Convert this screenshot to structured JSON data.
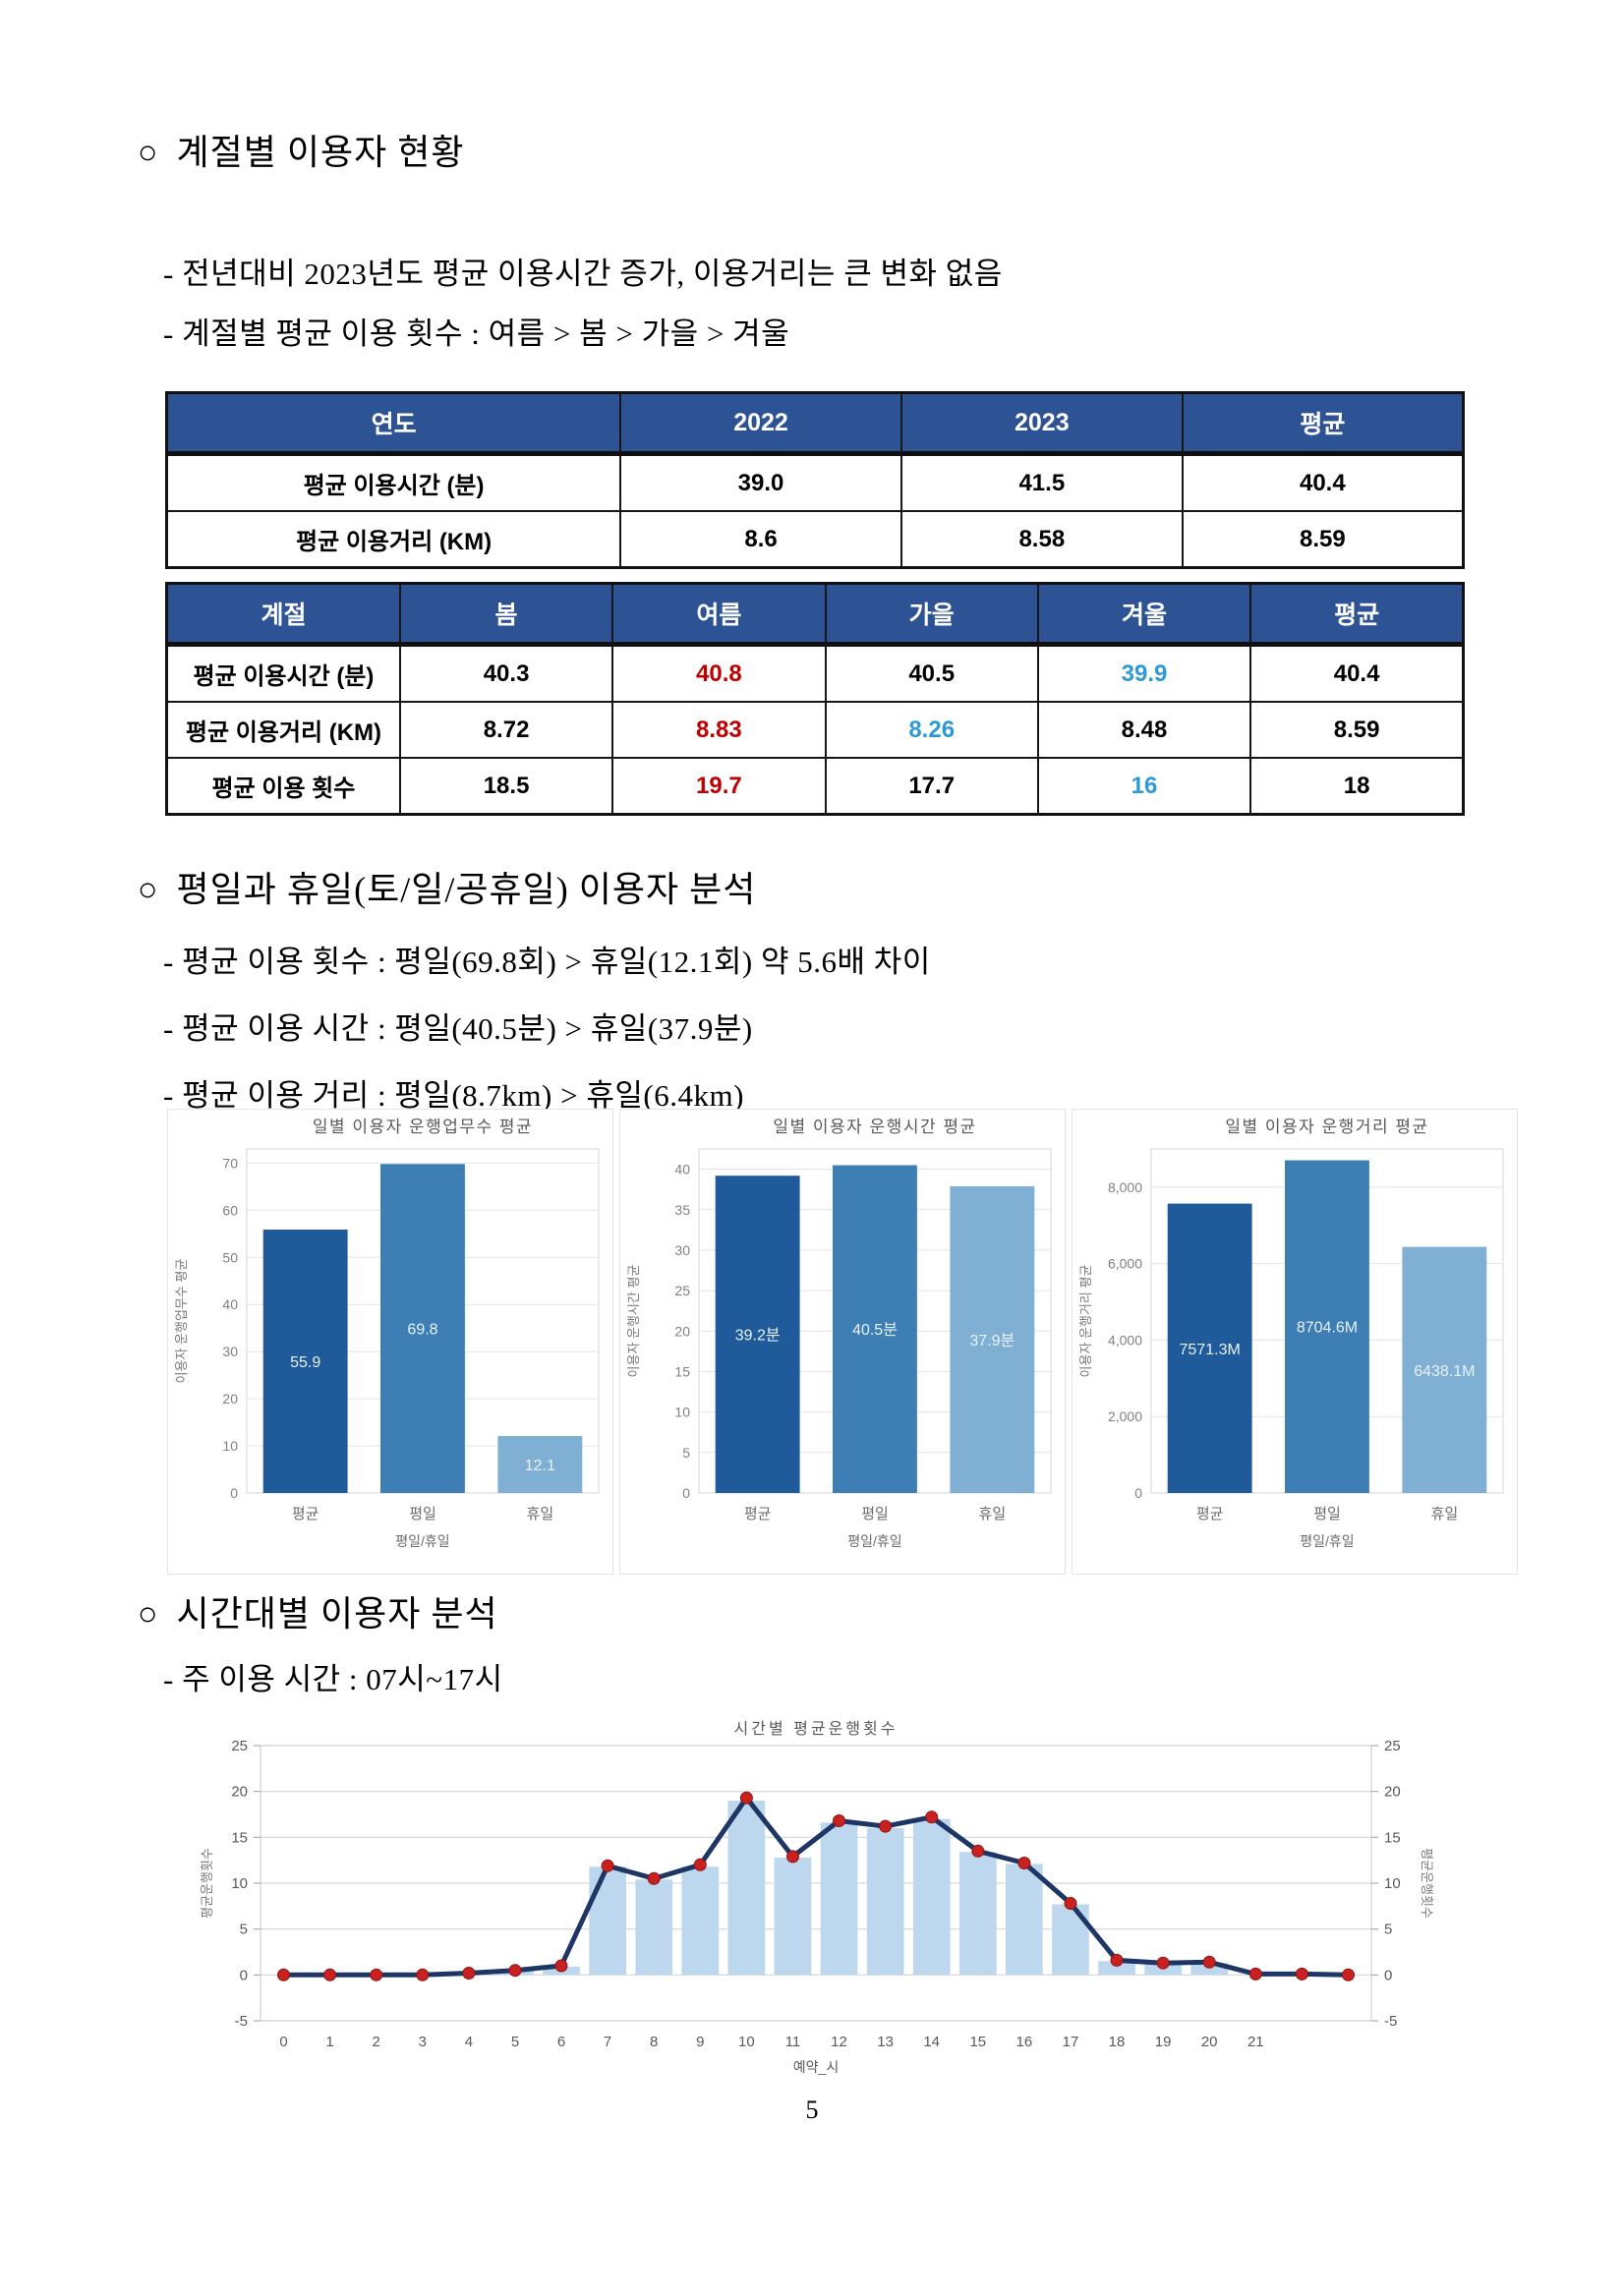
{
  "page_number": "5",
  "sections": {
    "s1": {
      "bullet": "○",
      "title": "계절별 이용자 현황",
      "items": [
        "- 전년대비 2023년도 평균 이용시간 증가, 이용거리는 큰 변화 없음",
        "- 계절별 평균 이용 횟수 : 여름 > 봄 > 가을 > 겨울"
      ]
    },
    "s2": {
      "bullet": "○",
      "title": "평일과 휴일(토/일/공휴일) 이용자 분석",
      "items": [
        "- 평균 이용 횟수 : 평일(69.8회) > 휴일(12.1회) 약 5.6배 차이",
        "- 평균 이용 시간 : 평일(40.5분) > 휴일(37.9분)",
        "- 평균 이용 거리 : 평일(8.7km) > 휴일(6.4km)"
      ]
    },
    "s3": {
      "bullet": "○",
      "title": "시간대별 이용자 분석",
      "items": [
        "- 주 이용 시간 : 07시~17시"
      ]
    }
  },
  "tables": {
    "year": {
      "headers": [
        "연도",
        "2022",
        "2023",
        "평균"
      ],
      "label_col_pct": 35,
      "rows": [
        {
          "label": "평균 이용시간 (분)",
          "values": [
            {
              "text": "39.0"
            },
            {
              "text": "41.5"
            },
            {
              "text": "40.4"
            }
          ]
        },
        {
          "label": "평균 이용거리 (KM)",
          "values": [
            {
              "text": "8.6"
            },
            {
              "text": "8.58"
            },
            {
              "text": "8.59"
            }
          ]
        }
      ]
    },
    "season": {
      "headers": [
        "계절",
        "봄",
        "여름",
        "가을",
        "겨울",
        "평균"
      ],
      "label_col_pct": 18,
      "rows": [
        {
          "label": "평균 이용시간 (분)",
          "values": [
            {
              "text": "40.3"
            },
            {
              "text": "40.8",
              "color": "red"
            },
            {
              "text": "40.5"
            },
            {
              "text": "39.9",
              "color": "blue"
            },
            {
              "text": "40.4"
            }
          ]
        },
        {
          "label": "평균 이용거리 (KM)",
          "values": [
            {
              "text": "8.72"
            },
            {
              "text": "8.83",
              "color": "red"
            },
            {
              "text": "8.26",
              "color": "blue"
            },
            {
              "text": "8.48"
            },
            {
              "text": "8.59"
            }
          ]
        },
        {
          "label": "평균 이용 횟수",
          "values": [
            {
              "text": "18.5"
            },
            {
              "text": "19.7",
              "color": "red"
            },
            {
              "text": "17.7"
            },
            {
              "text": "16",
              "color": "blue"
            },
            {
              "text": "18"
            }
          ]
        }
      ]
    }
  },
  "colors": {
    "table_header_bg": "#2e5395",
    "highlight_red": "#c00000",
    "highlight_blue": "#2e9ad4",
    "bar_dark": "#1f5a9b",
    "bar_mid": "#3d7fb5",
    "bar_light": "#7fb0d4",
    "combo_bar": "#bdd7ee",
    "combo_line": "#1e3666",
    "combo_marker": "#c92020"
  },
  "chart_data": [
    {
      "type": "bar",
      "title": "일별 이용자 운행업무수 평균",
      "ylabel": "이용자 운행업무수 평균",
      "xlabel": "평일/휴일",
      "categories": [
        "평균",
        "평일",
        "휴일"
      ],
      "values": [
        55.9,
        69.8,
        12.1
      ],
      "bar_labels": [
        "55.9",
        "69.8",
        "12.1"
      ],
      "yticks": [
        0,
        10,
        20,
        30,
        40,
        50,
        60,
        70
      ],
      "ylim": [
        0,
        73
      ],
      "bar_colors": [
        "#1f5a9b",
        "#3d7fb5",
        "#7fb0d4"
      ],
      "legend": "none",
      "grid": true
    },
    {
      "type": "bar",
      "title": "일별 이용자 운행시간 평균",
      "ylabel": "이용자 운행시간 평균",
      "xlabel": "평일/휴일",
      "categories": [
        "평균",
        "평일",
        "휴일"
      ],
      "values": [
        39.2,
        40.5,
        37.9
      ],
      "bar_labels": [
        "39.2분",
        "40.5분",
        "37.9분"
      ],
      "yticks": [
        0,
        5,
        10,
        15,
        20,
        25,
        30,
        35,
        40
      ],
      "ylim": [
        0,
        42.5
      ],
      "bar_colors": [
        "#1f5a9b",
        "#3d7fb5",
        "#7fb0d4"
      ],
      "legend": "none",
      "grid": true
    },
    {
      "type": "bar",
      "title": "일별 이용자 운행거리 평균",
      "ylabel": "이용자 운행거리 평균",
      "xlabel": "평일/휴일",
      "categories": [
        "평균",
        "평일",
        "휴일"
      ],
      "values": [
        7571.3,
        8704.6,
        6438.1
      ],
      "bar_labels": [
        "7571.3M",
        "8704.6M",
        "6438.1M"
      ],
      "yticks": [
        0,
        2000,
        4000,
        6000,
        8000
      ],
      "ytick_labels": [
        "0",
        "2,000",
        "4,000",
        "6,000",
        "8,000"
      ],
      "ylim": [
        0,
        9000
      ],
      "bar_colors": [
        "#1f5a9b",
        "#3d7fb5",
        "#7fb0d4"
      ],
      "legend": "none",
      "grid": true
    },
    {
      "type": "bar+line",
      "title": "시간별 평균운행횟수",
      "ylabel_left": "평균운행횟수",
      "ylabel_right": "평균운행횟수",
      "xlabel": "예약_시",
      "x": [
        0,
        1,
        2,
        3,
        4,
        5,
        6,
        7,
        8,
        9,
        10,
        11,
        12,
        13,
        14,
        15,
        16,
        17,
        18,
        19,
        20,
        21,
        22,
        23
      ],
      "xtick_labels": [
        "0",
        "1",
        "2",
        "3",
        "4",
        "5",
        "6",
        "7",
        "8",
        "9",
        "10",
        "11",
        "12",
        "13",
        "14",
        "15",
        "16",
        "17",
        "18",
        "19",
        "20",
        "21",
        "",
        ""
      ],
      "bar_values": [
        0,
        0,
        0,
        0,
        0.2,
        0.5,
        0.9,
        11.8,
        10.4,
        11.8,
        19.0,
        12.8,
        16.6,
        16.0,
        17.0,
        13.4,
        12.1,
        7.7,
        1.5,
        1.2,
        1.3,
        0.1,
        0,
        0
      ],
      "line_values": [
        0,
        0,
        0,
        0,
        0.2,
        0.5,
        1.0,
        11.9,
        10.5,
        12.0,
        19.3,
        12.9,
        16.8,
        16.2,
        17.2,
        13.5,
        12.2,
        7.8,
        1.6,
        1.3,
        1.4,
        0.1,
        0.1,
        0
      ],
      "yticks": [
        -5,
        0,
        5,
        10,
        15,
        20,
        25
      ],
      "ylim": [
        -5,
        25
      ],
      "bar_color": "#bdd7ee",
      "line_color": "#1e3666",
      "marker_color": "#c92020",
      "grid": true,
      "legend": "none"
    }
  ]
}
